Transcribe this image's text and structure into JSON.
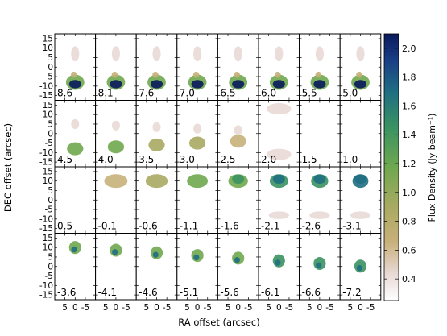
{
  "chart_data": {
    "type": "heatmap",
    "layout": {
      "rows": 4,
      "cols": 8
    },
    "panels": [
      {
        "label": "8.6"
      },
      {
        "label": "8.1"
      },
      {
        "label": "7.6"
      },
      {
        "label": "7.0"
      },
      {
        "label": "6.5"
      },
      {
        "label": "6.0"
      },
      {
        "label": "5.5"
      },
      {
        "label": "5.0"
      },
      {
        "label": "4.5"
      },
      {
        "label": "4.0"
      },
      {
        "label": "3.5"
      },
      {
        "label": "3.0"
      },
      {
        "label": "2.5"
      },
      {
        "label": "2.0"
      },
      {
        "label": "1.5"
      },
      {
        "label": "1.0"
      },
      {
        "label": "0.5"
      },
      {
        "label": "-0.1"
      },
      {
        "label": "-0.6"
      },
      {
        "label": "-1.1"
      },
      {
        "label": "-1.6"
      },
      {
        "label": "-2.1"
      },
      {
        "label": "-2.6"
      },
      {
        "label": "-3.1"
      },
      {
        "label": "-3.6"
      },
      {
        "label": "-4.1"
      },
      {
        "label": "-4.6"
      },
      {
        "label": "-5.1"
      },
      {
        "label": "-5.6"
      },
      {
        "label": "-6.1"
      },
      {
        "label": "-6.6"
      },
      {
        "label": "-7.2"
      }
    ],
    "ytick_labels": [
      "15",
      "10",
      "5",
      "0",
      "-5",
      "-10",
      "-15"
    ],
    "ytick_values": [
      15,
      10,
      5,
      0,
      -5,
      -10,
      -15
    ],
    "ylim": [
      -17.5,
      17.5
    ],
    "xtick_labels": [
      "5",
      "0",
      "-5"
    ],
    "xtick_values": [
      5,
      0,
      -5
    ],
    "xlim": [
      10,
      -10
    ],
    "xlabel": "RA offset (arcsec)",
    "ylabel": "DEC offset (arcsec)",
    "colorbar": {
      "label": "Flux Density (Jy beam⁻¹)",
      "min": 0.25,
      "max": 2.1,
      "ticks": [
        2.0,
        1.8,
        1.6,
        1.4,
        1.2,
        1.0,
        0.8,
        0.6,
        0.4
      ],
      "tick_labels": [
        "2.0",
        "1.8",
        "1.6",
        "1.4",
        "1.2",
        "1.0",
        "0.8",
        "0.6",
        "0.4"
      ],
      "colormap": "gist_earth_r",
      "colors": [
        "#ffffff",
        "#e8d9d6",
        "#c8b07a",
        "#a9aa62",
        "#6fa84f",
        "#3a9262",
        "#1f6f82",
        "#1a3f86",
        "#0a1a5c"
      ]
    },
    "grid": false
  }
}
